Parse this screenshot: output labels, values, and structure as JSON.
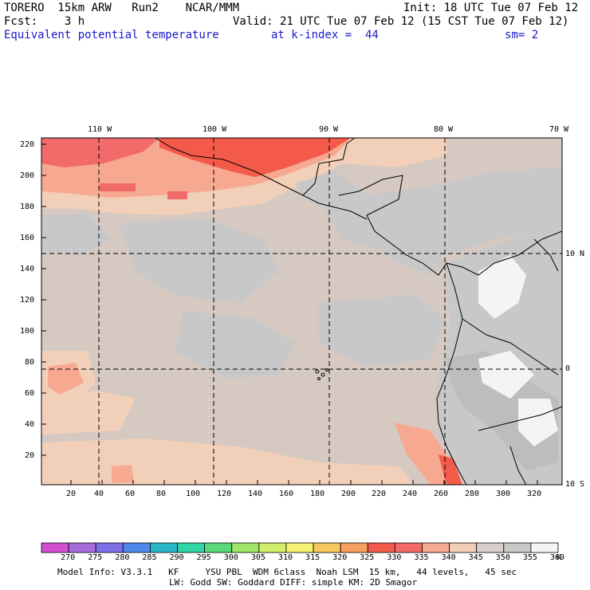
{
  "header": {
    "model": "TORERO  15km ARW   Run2    NCAR/MMM",
    "init": "Init: 18 UTC Tue 07 Feb 12",
    "fcst": "Fcst:    3 h",
    "valid": "Valid: 21 UTC Tue 07 Feb 12 (15 CST Tue 07 Feb 12)",
    "field": "Equivalent potential temperature",
    "level": "at k-index =  44",
    "smooth": "sm= 2"
  },
  "map": {
    "lon_labels": [
      "110 W",
      "100 W",
      "90 W",
      "80 W",
      "70 W"
    ],
    "lat_labels": [
      "10 N",
      "0",
      "10 S"
    ],
    "y_ticks": [
      "220",
      "200",
      "180",
      "160",
      "140",
      "120",
      "100",
      "80",
      "60",
      "40",
      "20"
    ],
    "x_ticks": [
      "20",
      "40",
      "60",
      "80",
      "100",
      "120",
      "140",
      "160",
      "180",
      "200",
      "220",
      "240",
      "260",
      "280",
      "300",
      "320"
    ]
  },
  "colorbar": {
    "unit": "K",
    "labels": [
      "270",
      "275",
      "280",
      "285",
      "290",
      "295",
      "300",
      "305",
      "310",
      "315",
      "320",
      "325",
      "330",
      "335",
      "340",
      "345",
      "350",
      "355",
      "360"
    ],
    "colors": [
      "#d24fd2",
      "#a86ad8",
      "#7e6fe6",
      "#4f88e8",
      "#29b8c8",
      "#2fd6a6",
      "#5ad87a",
      "#9fe66a",
      "#d2ee6c",
      "#f6f170",
      "#f8c860",
      "#f8a060",
      "#f45a4a",
      "#f26a6a",
      "#f7a890",
      "#f2cfb8",
      "#d8d0cc",
      "#c8c8c8",
      "#f4f4f4"
    ]
  },
  "footer": {
    "line1": "Model Info: V3.3.1   KF     YSU PBL  WDM 6class  Noah LSM  15 km,   44 levels,   45 sec",
    "line2": "LW: Godd SW: Goddard DIFF: simple KM: 2D Smagor"
  }
}
